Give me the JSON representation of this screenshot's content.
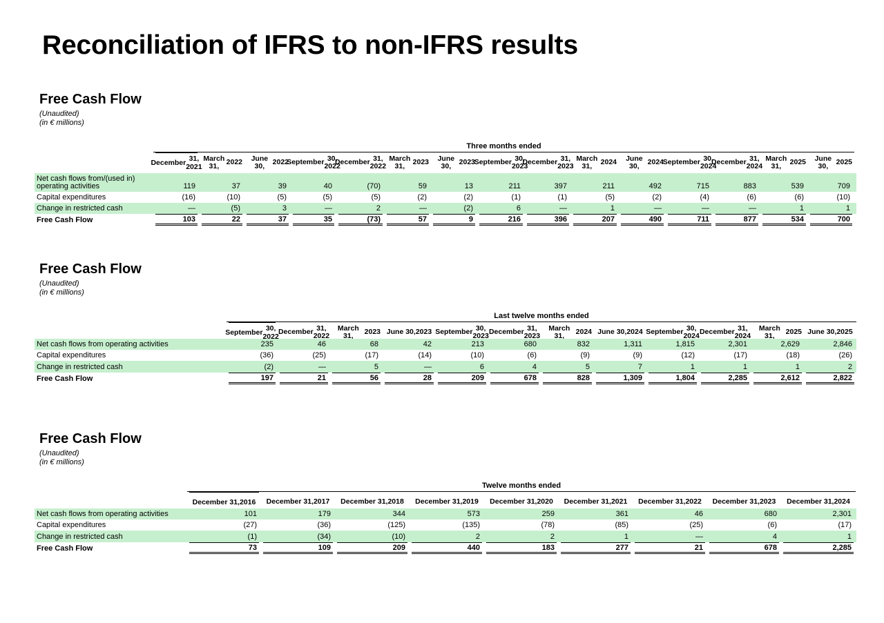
{
  "page_title": "Reconciliation of IFRS to non-IFRS results",
  "tables": [
    {
      "title": "Free Cash Flow",
      "notes": [
        "(Unaudited)",
        "(in € millions)"
      ],
      "period_label": "Three months ended",
      "columns": [
        [
          "December",
          "31, 2021"
        ],
        [
          "March 31,",
          "2022"
        ],
        [
          "June 30,",
          "2022"
        ],
        [
          "September",
          "30, 2022"
        ],
        [
          "December",
          "31, 2022"
        ],
        [
          "March 31,",
          "2023"
        ],
        [
          "June 30,",
          "2023"
        ],
        [
          "September",
          "30, 2023"
        ],
        [
          "December",
          "31, 2023"
        ],
        [
          "March 31,",
          "2024"
        ],
        [
          "June 30,",
          "2024"
        ],
        [
          "September",
          "30, 2024"
        ],
        [
          "December",
          "31, 2024"
        ],
        [
          "March 31,",
          "2025"
        ],
        [
          "June 30,",
          "2025"
        ]
      ],
      "rows": [
        {
          "label": "Net cash flows from/(used in) operating activities",
          "label_lines": [
            "Net cash flows from/(used in)",
            "operating activities"
          ],
          "values": [
            "119",
            "37",
            "39",
            "40",
            "(70)",
            "59",
            "13",
            "211",
            "397",
            "211",
            "492",
            "715",
            "883",
            "539",
            "709"
          ]
        },
        {
          "label": "Capital expenditures",
          "values": [
            "(16)",
            "(10)",
            "(5)",
            "(5)",
            "(5)",
            "(2)",
            "(2)",
            "(1)",
            "(1)",
            "(5)",
            "(2)",
            "(4)",
            "(6)",
            "(6)",
            "(10)"
          ]
        },
        {
          "label": "Change in restricted cash",
          "values": [
            "—",
            "(5)",
            "3",
            "—",
            "2",
            "—",
            "(2)",
            "6",
            "—",
            "1",
            "—",
            "—",
            "—",
            "1",
            "1"
          ]
        },
        {
          "label": "Free Cash Flow",
          "values": [
            "103",
            "22",
            "37",
            "35",
            "(73)",
            "57",
            "9",
            "216",
            "396",
            "207",
            "490",
            "711",
            "877",
            "534",
            "700"
          ]
        }
      ]
    },
    {
      "title": "Free Cash Flow",
      "notes": [
        "(Unaudited)",
        "(in € millions)"
      ],
      "period_label": "Last twelve months ended",
      "columns": [
        [
          "September",
          "30, 2022"
        ],
        [
          "December",
          "31, 2022"
        ],
        [
          "March 31,",
          "2023"
        ],
        [
          "June 30,",
          "2023"
        ],
        [
          "September",
          "30, 2023"
        ],
        [
          "December",
          "31, 2023"
        ],
        [
          "March 31,",
          "2024"
        ],
        [
          "June 30,",
          "2024"
        ],
        [
          "September",
          "30, 2024"
        ],
        [
          "December",
          "31, 2024"
        ],
        [
          "March 31,",
          "2025"
        ],
        [
          "June 30,",
          "2025"
        ]
      ],
      "rows": [
        {
          "label": "Net cash flows from operating activities",
          "values": [
            "235",
            "46",
            "68",
            "42",
            "213",
            "680",
            "832",
            "1,311",
            "1,815",
            "2,301",
            "2,629",
            "2,846"
          ]
        },
        {
          "label": "Capital expenditures",
          "values": [
            "(36)",
            "(25)",
            "(17)",
            "(14)",
            "(10)",
            "(6)",
            "(9)",
            "(9)",
            "(12)",
            "(17)",
            "(18)",
            "(26)"
          ]
        },
        {
          "label": "Change in restricted cash",
          "values": [
            "(2)",
            "—",
            "5",
            "—",
            "6",
            "4",
            "5",
            "7",
            "1",
            "1",
            "1",
            "2"
          ]
        },
        {
          "label": "Free Cash Flow",
          "values": [
            "197",
            "21",
            "56",
            "28",
            "209",
            "678",
            "828",
            "1,309",
            "1,804",
            "2,285",
            "2,612",
            "2,822"
          ]
        }
      ]
    },
    {
      "title": "Free Cash Flow",
      "notes": [
        "(Unaudited)",
        "(in € millions)"
      ],
      "period_label": "Twelve months ended",
      "columns": [
        [
          "December 31,",
          "2016"
        ],
        [
          "December 31,",
          "2017"
        ],
        [
          "December 31,",
          "2018"
        ],
        [
          "December 31,",
          "2019"
        ],
        [
          "December 31,",
          "2020"
        ],
        [
          "December 31,",
          "2021"
        ],
        [
          "December 31,",
          "2022"
        ],
        [
          "December 31,",
          "2023"
        ],
        [
          "December 31,",
          "2024"
        ]
      ],
      "rows": [
        {
          "label": "Net cash flows from operating activities",
          "values": [
            "101",
            "179",
            "344",
            "573",
            "259",
            "361",
            "46",
            "680",
            "2,301"
          ]
        },
        {
          "label": "Capital expenditures",
          "values": [
            "(27)",
            "(36)",
            "(125)",
            "(135)",
            "(78)",
            "(85)",
            "(25)",
            "(6)",
            "(17)"
          ]
        },
        {
          "label": "Change in restricted cash",
          "values": [
            "(1)",
            "(34)",
            "(10)",
            "2",
            "2",
            "1",
            "—",
            "4",
            "1"
          ]
        },
        {
          "label": "Free Cash Flow",
          "values": [
            "73",
            "109",
            "209",
            "440",
            "183",
            "277",
            "21",
            "678",
            "2,285"
          ]
        }
      ]
    }
  ]
}
